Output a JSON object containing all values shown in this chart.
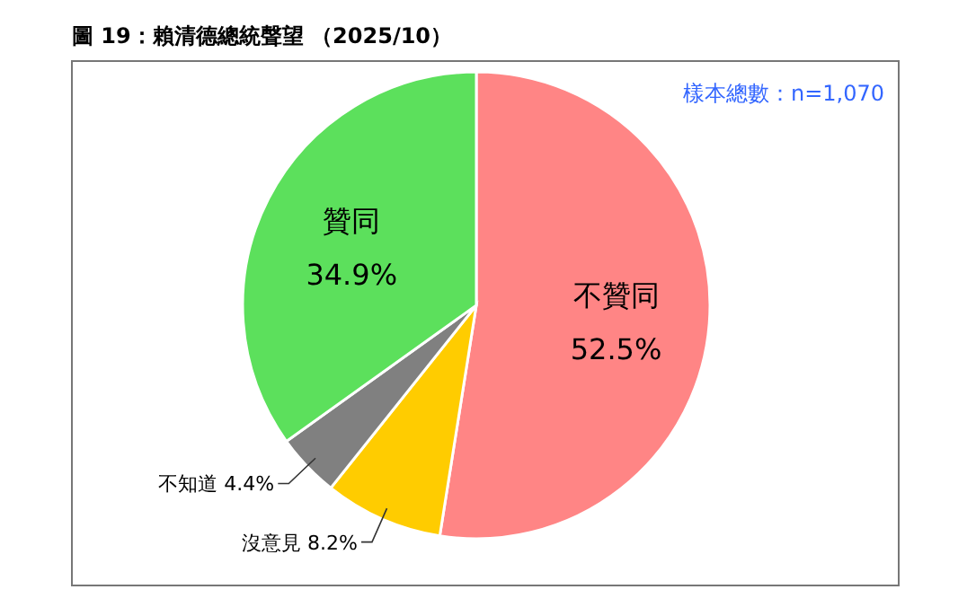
{
  "chart_data": {
    "type": "pie",
    "title": "圖 19：賴清德總統聲望 （2025/10）",
    "annotations": [
      "樣本總數：n=1,070"
    ],
    "categories": [
      "不贊同",
      "沒意見",
      "不知道",
      "贊同"
    ],
    "values": [
      52.5,
      8.2,
      4.4,
      34.9
    ],
    "value_labels": [
      "52.5%",
      "8.2%",
      "4.4%",
      "34.9%"
    ],
    "colors": [
      "#ff8585",
      "#ffcc00",
      "#808080",
      "#5ce05c"
    ]
  }
}
